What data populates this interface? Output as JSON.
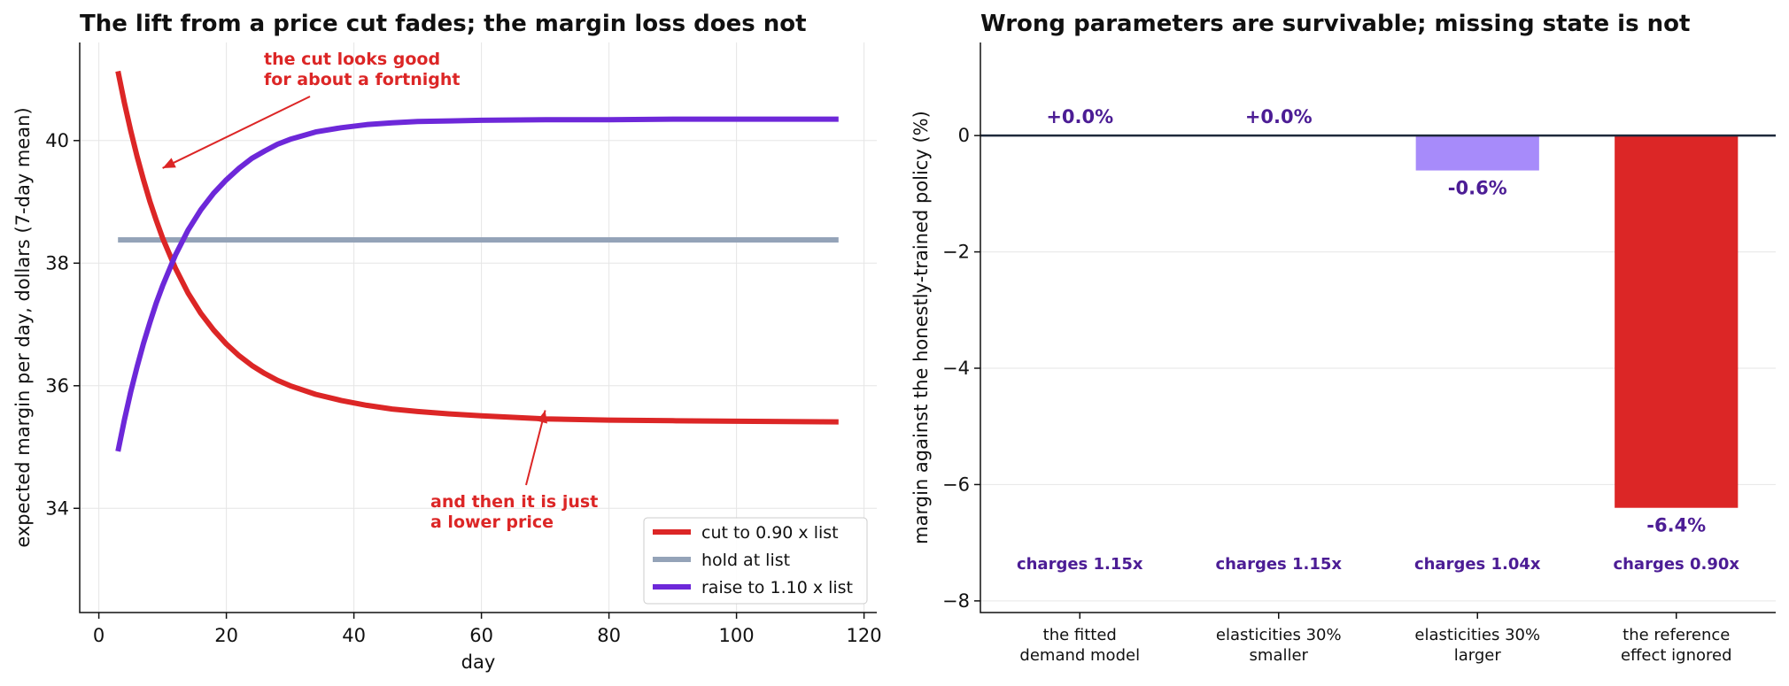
{
  "chart_data": [
    {
      "type": "line",
      "title": "The lift from a price cut fades; the margin loss does not",
      "xlabel": "day",
      "ylabel": "expected margin per day, dollars (7-day mean)",
      "xlim": [
        -3,
        122
      ],
      "ylim": [
        32.3,
        41.6
      ],
      "xticks": [
        0,
        20,
        40,
        60,
        80,
        100,
        120
      ],
      "yticks": [
        34,
        36,
        38,
        40
      ],
      "grid": true,
      "legend_position": "bottom-right",
      "series": [
        {
          "name": "cut to 0.90 x list",
          "color": "#dc2626",
          "x": [
            3,
            4,
            5,
            6,
            7,
            8,
            9,
            10,
            12,
            14,
            16,
            18,
            20,
            22,
            24,
            26,
            28,
            30,
            34,
            38,
            42,
            46,
            50,
            55,
            60,
            70,
            80,
            90,
            100,
            116
          ],
          "y": [
            41.13,
            40.62,
            40.16,
            39.74,
            39.36,
            39.01,
            38.7,
            38.41,
            37.92,
            37.51,
            37.18,
            36.91,
            36.68,
            36.49,
            36.33,
            36.2,
            36.09,
            36.0,
            35.86,
            35.76,
            35.68,
            35.62,
            35.58,
            35.54,
            35.51,
            35.46,
            35.44,
            35.43,
            35.42,
            35.41
          ]
        },
        {
          "name": "hold at list",
          "color": "#94a3b8",
          "x": [
            3,
            116
          ],
          "y": [
            38.38,
            38.38
          ]
        },
        {
          "name": "raise to 1.10 x list",
          "color": "#6d28d9",
          "x": [
            3,
            4,
            5,
            6,
            7,
            8,
            9,
            10,
            12,
            14,
            16,
            18,
            20,
            22,
            24,
            26,
            28,
            30,
            34,
            38,
            42,
            46,
            50,
            55,
            60,
            70,
            80,
            90,
            100,
            116
          ],
          "y": [
            34.93,
            35.44,
            35.9,
            36.31,
            36.69,
            37.03,
            37.35,
            37.63,
            38.13,
            38.54,
            38.87,
            39.14,
            39.36,
            39.55,
            39.71,
            39.83,
            39.94,
            40.02,
            40.14,
            40.21,
            40.26,
            40.29,
            40.31,
            40.32,
            40.33,
            40.34,
            40.34,
            40.35,
            40.35,
            40.35
          ]
        }
      ],
      "annotations": [
        {
          "text": "the cut looks good\nfor about a fortnight",
          "point": [
            10,
            39.55
          ]
        },
        {
          "text": "and then it is just\na lower price",
          "point": [
            70,
            35.6
          ]
        }
      ]
    },
    {
      "type": "bar",
      "title": "Wrong parameters are survivable; missing state is not",
      "xlabel": "",
      "ylabel": "margin against the honestly-trained policy (%)",
      "ylim": [
        -8.2,
        1.6
      ],
      "yticks": [
        0,
        -2,
        -4,
        -6,
        -8
      ],
      "grid": true,
      "categories": [
        "the fitted\ndemand model",
        "elasticities 30%\nsmaller",
        "elasticities 30%\nlarger",
        "the reference\neffect ignored"
      ],
      "values": [
        0.0,
        0.0,
        -0.6,
        -6.4
      ],
      "value_labels": [
        "+0.0%",
        "+0.0%",
        "-0.6%",
        "-6.4%"
      ],
      "charge_labels": [
        "charges 1.15x",
        "charges 1.15x",
        "charges 1.04x",
        "charges 0.90x"
      ],
      "bar_colors": [
        "#a78bfa",
        "#a78bfa",
        "#a78bfa",
        "#dc2626"
      ],
      "label_color": "#4c1d95"
    }
  ],
  "colors": {
    "annotation": "#dc2626",
    "zero_line": "#1e293b",
    "spine": "#111111"
  }
}
